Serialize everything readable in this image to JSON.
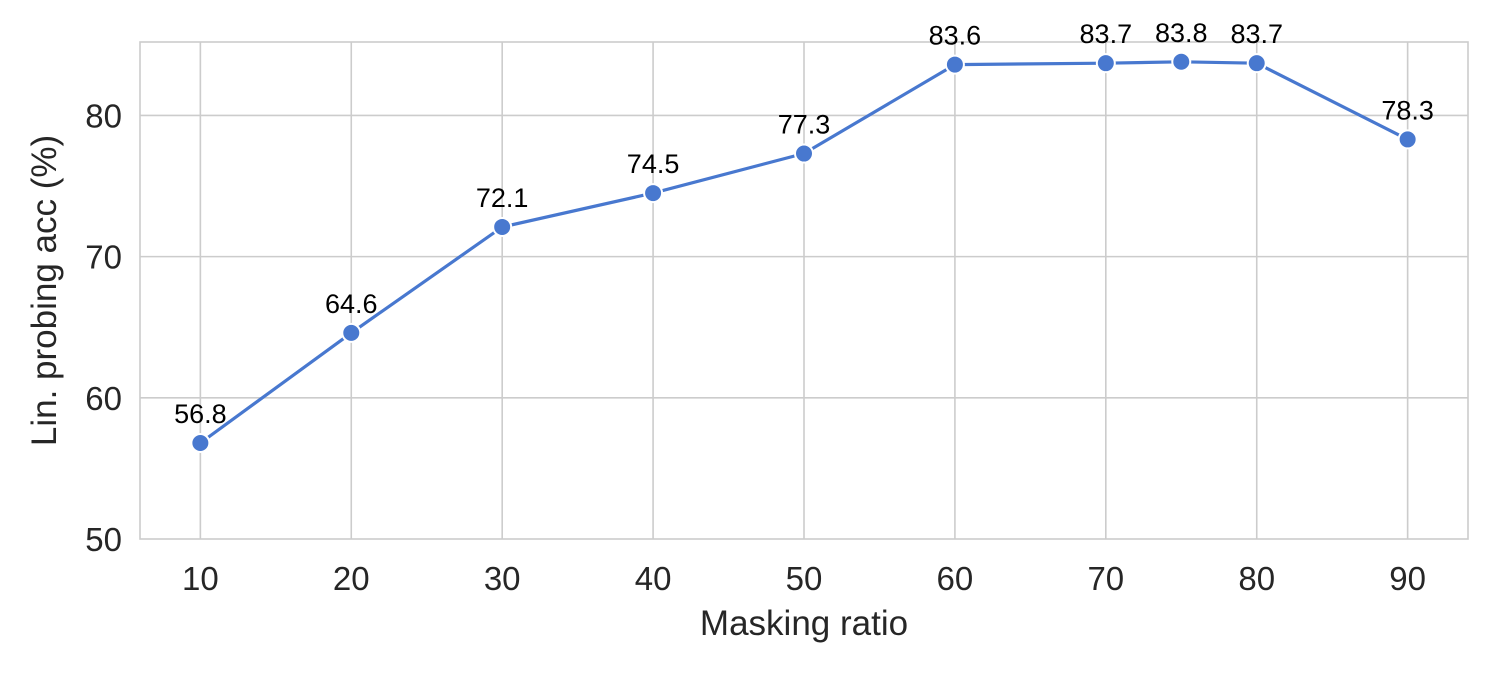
{
  "chart_data": {
    "type": "line",
    "title": "",
    "xlabel": "Masking ratio",
    "ylabel": "Lin. probing acc (%)",
    "x": [
      10,
      20,
      30,
      40,
      50,
      60,
      70,
      75,
      80,
      90
    ],
    "y": [
      56.8,
      64.6,
      72.1,
      74.5,
      77.3,
      83.6,
      83.7,
      83.8,
      83.7,
      78.3
    ],
    "data_labels": [
      "56.8",
      "64.6",
      "72.1",
      "74.5",
      "77.3",
      "83.6",
      "83.7",
      "83.8",
      "83.7",
      "78.3"
    ],
    "xticks": [
      10,
      20,
      30,
      40,
      50,
      60,
      70,
      80,
      90
    ],
    "xtick_labels": [
      "10",
      "20",
      "30",
      "40",
      "50",
      "60",
      "70",
      "80",
      "90"
    ],
    "yticks": [
      50,
      60,
      70,
      80
    ],
    "ytick_labels": [
      "50",
      "60",
      "70",
      "80"
    ],
    "xlim": [
      6,
      94
    ],
    "ylim": [
      50,
      85.2
    ],
    "grid": true,
    "line_color": "#4878cf",
    "marker": "circle"
  }
}
